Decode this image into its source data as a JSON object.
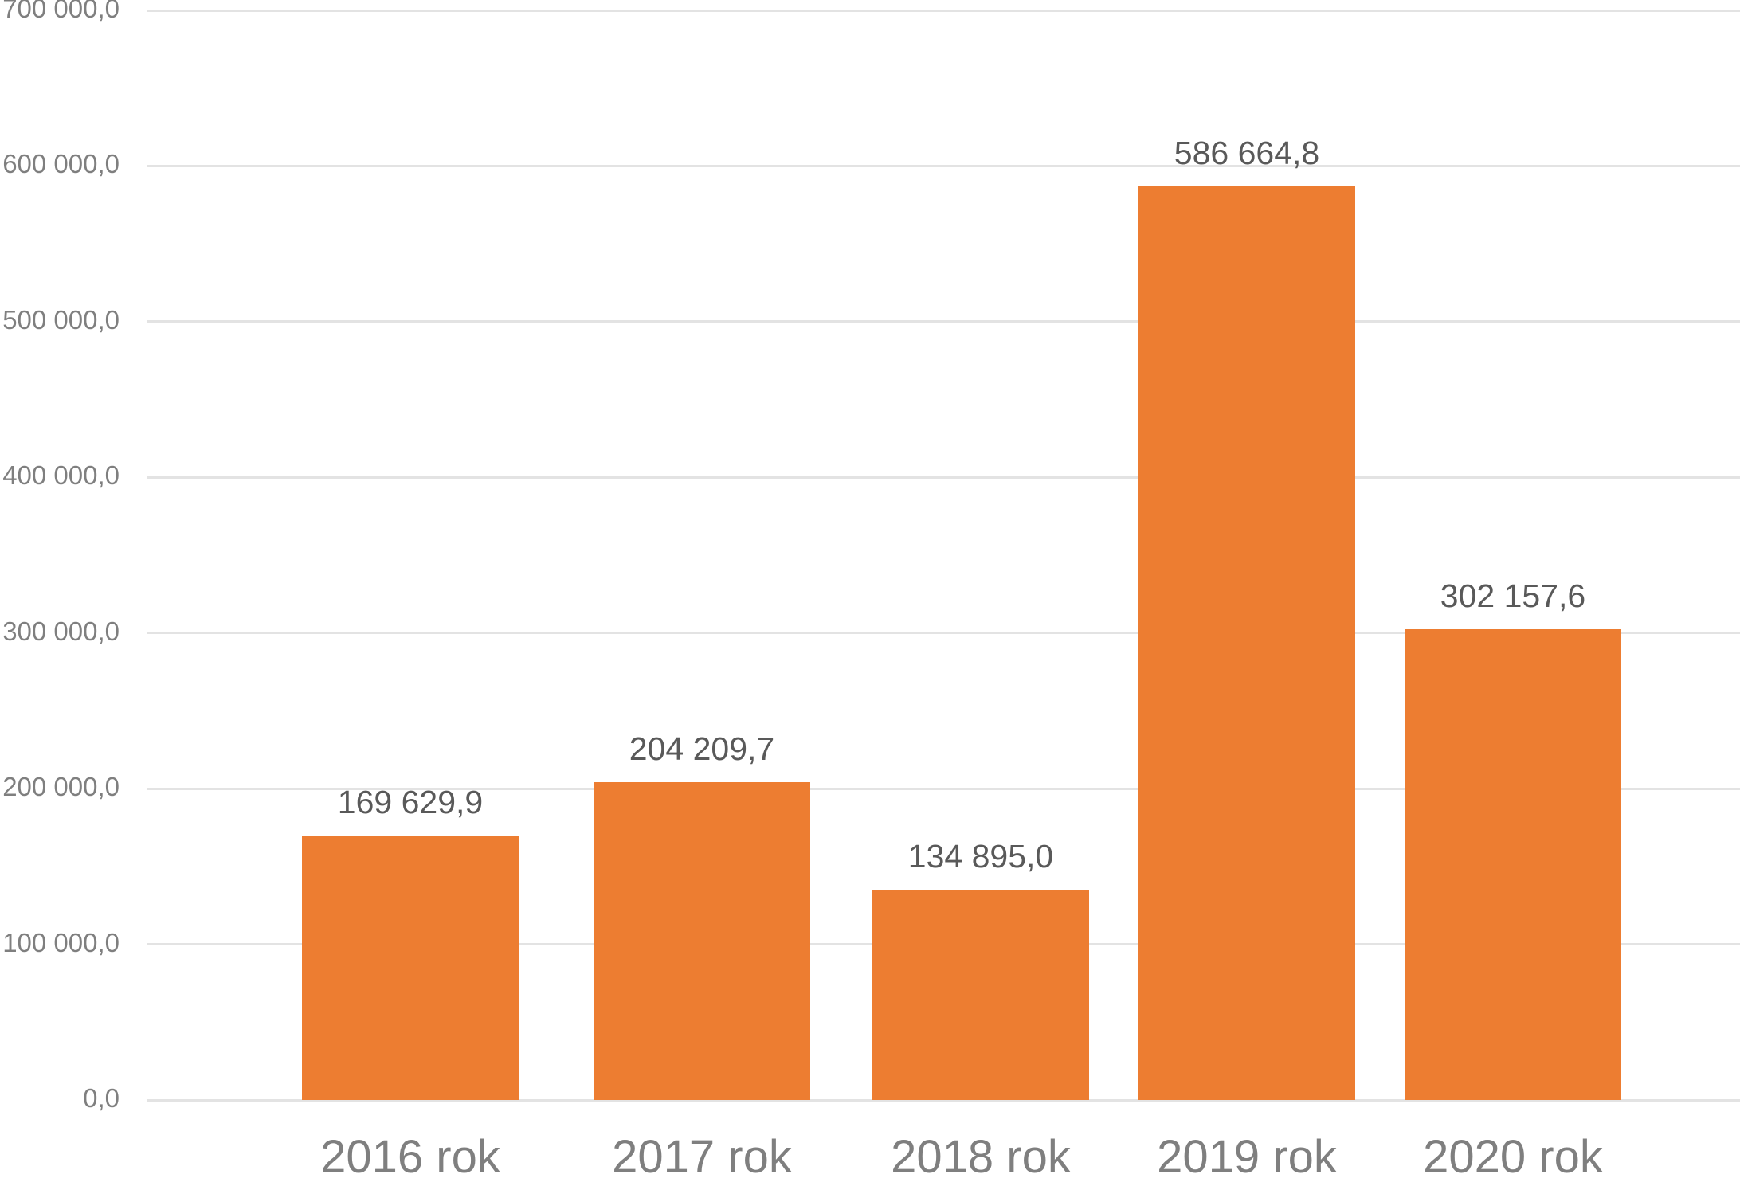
{
  "chart_data": {
    "type": "bar",
    "title": "",
    "xlabel": "",
    "ylabel": "",
    "categories": [
      "2016 rok",
      "2017 rok",
      "2018 rok",
      "2019 rok",
      "2020 rok"
    ],
    "values": [
      169629.9,
      204209.7,
      134895.0,
      586664.8,
      302157.6
    ],
    "data_labels": [
      "169 629,9",
      "204 209,7",
      "134 895,0",
      "586 664,8",
      "302 157,6"
    ],
    "ylim": [
      0,
      700000
    ],
    "yticks": [
      0,
      100000,
      200000,
      300000,
      400000,
      500000,
      600000,
      700000
    ],
    "ytick_labels": [
      "0,0",
      "100 000,0",
      "200 000,0",
      "300 000,0",
      "400 000,0",
      "500 000,0",
      "600 000,0",
      "700 000,0"
    ],
    "grid": true,
    "legend": "none",
    "bar_color": "#ed7d31"
  },
  "colors": {
    "bar": "#ed7d31",
    "grid": "#e3e3e3",
    "axis_text": "#7f7f7f",
    "data_label_text": "#595959"
  }
}
